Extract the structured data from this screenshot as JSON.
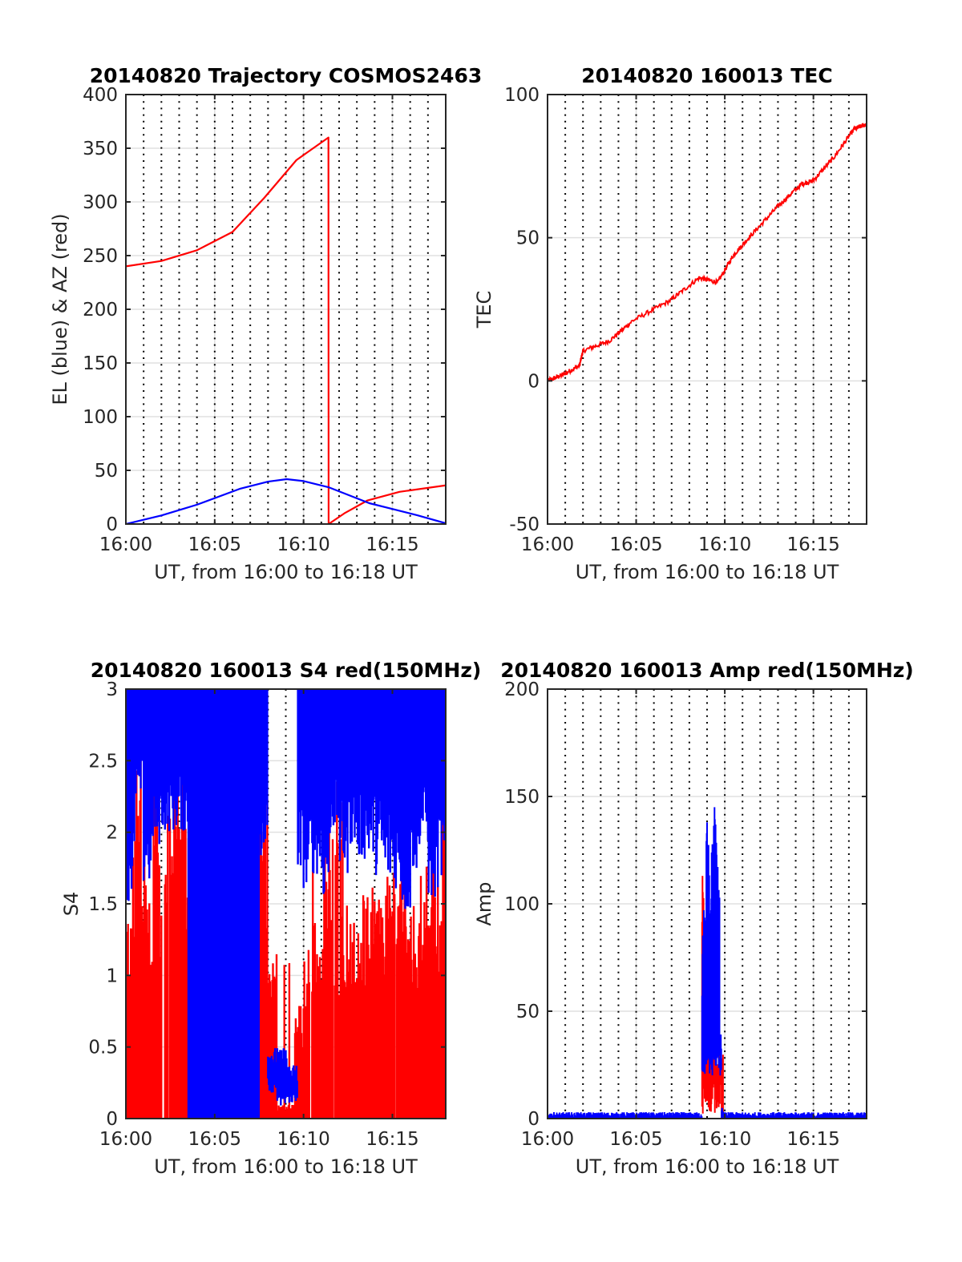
{
  "colors": {
    "red": "#ff0000",
    "blue": "#0000ff",
    "axis": "#262626",
    "grid": "#e0e0e0"
  },
  "chart_data": [
    {
      "type": "line",
      "title": "20140820 Trajectory COSMOS2463",
      "xlabel": "UT, from 16:00 to 16:18 UT",
      "ylabel": "EL (blue) & AZ (red)",
      "xlim": [
        0,
        18
      ],
      "ylim": [
        0,
        400
      ],
      "xticks": [
        0,
        5,
        10,
        15
      ],
      "xticklabels": [
        "16:00",
        "16:05",
        "16:10",
        "16:15"
      ],
      "yticks": [
        0,
        50,
        100,
        150,
        200,
        250,
        300,
        350,
        400
      ],
      "yticklabels": [
        "0",
        "50",
        "100",
        "150",
        "200",
        "250",
        "300",
        "350",
        "400"
      ],
      "grid": "horizontal major, vertical dotted every minute",
      "series": [
        {
          "name": "AZ",
          "color": "red",
          "x": [
            0,
            2,
            4,
            6,
            7.8,
            9.6,
            11.4,
            11.41,
            12.3,
            13.6,
            15.4,
            18
          ],
          "y": [
            240,
            245,
            255,
            272,
            304,
            339,
            360,
            0,
            10,
            22,
            30,
            36
          ]
        },
        {
          "name": "EL",
          "color": "blue",
          "x": [
            0,
            2,
            4,
            6.45,
            8,
            9.05,
            10,
            11.4,
            13.7,
            16.4,
            18
          ],
          "y": [
            0,
            8,
            18,
            33,
            39.5,
            41.8,
            40,
            34.3,
            19.4,
            8.2,
            0.7
          ]
        }
      ]
    },
    {
      "type": "line",
      "title": "20140820 160013 TEC",
      "xlabel": "UT, from 16:00 to 16:18 UT",
      "ylabel": "TEC",
      "xlim": [
        0,
        18
      ],
      "ylim": [
        -50,
        100
      ],
      "xticks": [
        0,
        5,
        10,
        15
      ],
      "xticklabels": [
        "16:00",
        "16:05",
        "16:10",
        "16:15"
      ],
      "yticks": [
        -50,
        0,
        50,
        100
      ],
      "yticklabels": [
        "-50",
        "0",
        "50",
        "100"
      ],
      "grid": "horizontal major, vertical dotted every minute",
      "series": [
        {
          "name": "TEC",
          "color": "red",
          "x": [
            0,
            0.8,
            1.8,
            2.0,
            3.5,
            4.8,
            6.9,
            8.55,
            9.6,
            10.5,
            11.5,
            13,
            14.3,
            15,
            16.2,
            17.3,
            18
          ],
          "y": [
            0,
            2,
            5.3,
            10.5,
            14,
            21,
            28,
            36,
            34.4,
            44,
            51,
            61,
            68.6,
            70,
            78.4,
            88,
            89.6
          ]
        }
      ]
    },
    {
      "type": "line",
      "title": "20140820 160013 S4 red(150MHz)",
      "xlabel": "UT, from 16:00 to 16:18 UT",
      "ylabel": "S4",
      "xlim": [
        0,
        18
      ],
      "ylim": [
        0,
        3
      ],
      "xticks": [
        0,
        5,
        10,
        15
      ],
      "xticklabels": [
        "16:00",
        "16:05",
        "16:10",
        "16:15"
      ],
      "yticks": [
        0,
        0.5,
        1,
        1.5,
        2,
        2.5,
        3
      ],
      "yticklabels": [
        "0",
        "0.5",
        "1",
        "1.5",
        "2",
        "2.5",
        "3"
      ],
      "grid": "horizontal major, vertical dotted every minute",
      "bin_minutes": 0.5,
      "series": [
        {
          "name": "S4 blue (lower envelope, values clip at 3)",
          "color": "blue",
          "values": [
            1.5,
            2.2,
            1.6,
            1.9,
            2.0,
            2.0,
            2.0,
            0,
            0,
            0,
            0,
            0,
            0,
            0,
            0,
            1.8,
            0.3,
            0.15,
            0.2,
            1.6,
            1.6,
            1.7,
            1.5,
            2.0,
            1.7,
            1.9,
            1.8,
            1.8,
            1.7,
            1.6,
            1.6,
            1.4,
            1.7,
            1.9,
            1.5,
            1.6
          ]
        },
        {
          "name": "S4 red (upper envelope)",
          "color": "red",
          "values": [
            1.4,
            2.2,
            1.9,
            2.0,
            2.2,
            2.3,
            2.1,
            2.9,
            0,
            0,
            0,
            0,
            0,
            0,
            0.5,
            2.4,
            1.2,
            0.1,
            0.1,
            0.8,
            1.2,
            1.4,
            1.8,
            1.5,
            1.5,
            1.4,
            1.6,
            1.7,
            1.6,
            1.7,
            1.8,
            1.8,
            1.6,
            1.8,
            1.6,
            1.8
          ]
        }
      ]
    },
    {
      "type": "line",
      "title": "20140820 160013 Amp red(150MHz)",
      "xlabel": "UT, from 16:00 to 16:18 UT",
      "ylabel": "Amp",
      "xlim": [
        0,
        18
      ],
      "ylim": [
        0,
        200
      ],
      "xticks": [
        0,
        5,
        10,
        15
      ],
      "xticklabels": [
        "16:00",
        "16:05",
        "16:10",
        "16:15"
      ],
      "yticks": [
        0,
        50,
        100,
        150,
        200
      ],
      "yticklabels": [
        "0",
        "50",
        "100",
        "150",
        "200"
      ],
      "grid": "horizontal major, vertical dotted every minute",
      "baseline": {
        "blue_max": 3,
        "red_max": 0
      },
      "burst": {
        "x": [
          8.7,
          8.8,
          8.9,
          9.0,
          9.1,
          9.2,
          9.3,
          9.4,
          9.5,
          9.6,
          9.7,
          9.8,
          9.9
        ],
        "blue_max": [
          90,
          100,
          140,
          135,
          120,
          130,
          145,
          150,
          148,
          110,
          40,
          5,
          2
        ],
        "blue_min": [
          25,
          25,
          30,
          28,
          25,
          25,
          28,
          30,
          30,
          28,
          25,
          0,
          0
        ],
        "red_max": [
          115,
          60,
          45,
          40,
          35,
          30,
          30,
          30,
          30,
          30,
          32,
          30,
          0
        ]
      }
    }
  ]
}
